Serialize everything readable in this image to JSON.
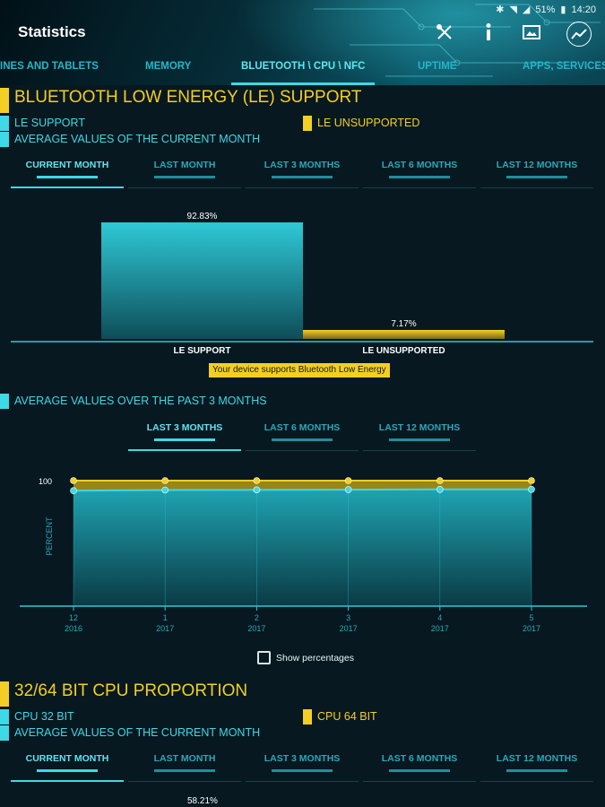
{
  "status_bar": {
    "battery": "51%",
    "time": "14:20"
  },
  "app_bar": {
    "title": "Statistics",
    "icons": [
      "tools-icon",
      "info-icon",
      "screenshot-icon",
      "chart-icon"
    ]
  },
  "tabs": [
    {
      "label": "INES AND TABLETS",
      "active": false
    },
    {
      "label": "MEMORY",
      "active": false
    },
    {
      "label": "BLUETOOTH \\ CPU \\ NFC",
      "active": true
    },
    {
      "label": "UPTIME",
      "active": false
    },
    {
      "label": "APPS, SERVICES",
      "active": false
    }
  ],
  "colors": {
    "accent_cyan": "#3fd8e6",
    "accent_yellow": "#f3cf25",
    "background": "#071820"
  },
  "ble_section": {
    "title": "BLUETOOTH LOW ENERGY (LE) SUPPORT",
    "legend_le_support": "LE SUPPORT",
    "legend_le_unsupported": "LE UNSUPPORTED",
    "avg_current_month": "AVERAGE VALUES OF THE CURRENT MONTH",
    "period_tabs": [
      "CURRENT MONTH",
      "LAST MONTH",
      "LAST 3 MONTHS",
      "LAST 6 MONTHS",
      "LAST 12 MONTHS"
    ],
    "notice": "Your device supports Bluetooth Low Energy",
    "avg_past_3_months": "AVERAGE VALUES OVER THE PAST 3 MONTHS",
    "trend_tabs": [
      "LAST 3 MONTHS",
      "LAST 6 MONTHS",
      "LAST 12 MONTHS"
    ],
    "show_percentages": "Show percentages"
  },
  "cpu_section": {
    "title": "32/64 BIT CPU PROPORTION",
    "legend_32": "CPU 32 BIT",
    "legend_64": "CPU 64 BIT",
    "avg_current_month": "AVERAGE VALUES OF THE CURRENT MONTH",
    "period_tabs": [
      "CURRENT MONTH",
      "LAST MONTH",
      "LAST 3 MONTHS",
      "LAST 6 MONTHS",
      "LAST 12 MONTHS"
    ],
    "first_value_label": "58.21%"
  },
  "chart_data": [
    {
      "type": "bar",
      "categories": [
        "LE SUPPORT",
        "LE UNSUPPORTED"
      ],
      "values": [
        92.83,
        7.17
      ],
      "value_labels": [
        "92.83%",
        "7.17%"
      ],
      "colors": [
        "#3fd8e6",
        "#f3cf25"
      ],
      "ylim": [
        0,
        100
      ]
    },
    {
      "type": "area",
      "x_labels": [
        [
          "12",
          "2016"
        ],
        [
          "1",
          "2017"
        ],
        [
          "2",
          "2017"
        ],
        [
          "3",
          "2017"
        ],
        [
          "4",
          "2017"
        ],
        [
          "5",
          "2017"
        ]
      ],
      "ylabel": "PERCENT",
      "yticks": [
        100
      ],
      "ylim": [
        0,
        100
      ],
      "series": [
        {
          "name": "LE UNSUPPORTED",
          "color": "#f3cf25",
          "values": [
            100,
            100,
            100,
            100,
            100,
            100
          ]
        },
        {
          "name": "LE SUPPORT",
          "color": "#3fd8e6",
          "values": [
            92,
            92.5,
            92.6,
            92.8,
            93,
            93
          ]
        }
      ]
    }
  ]
}
